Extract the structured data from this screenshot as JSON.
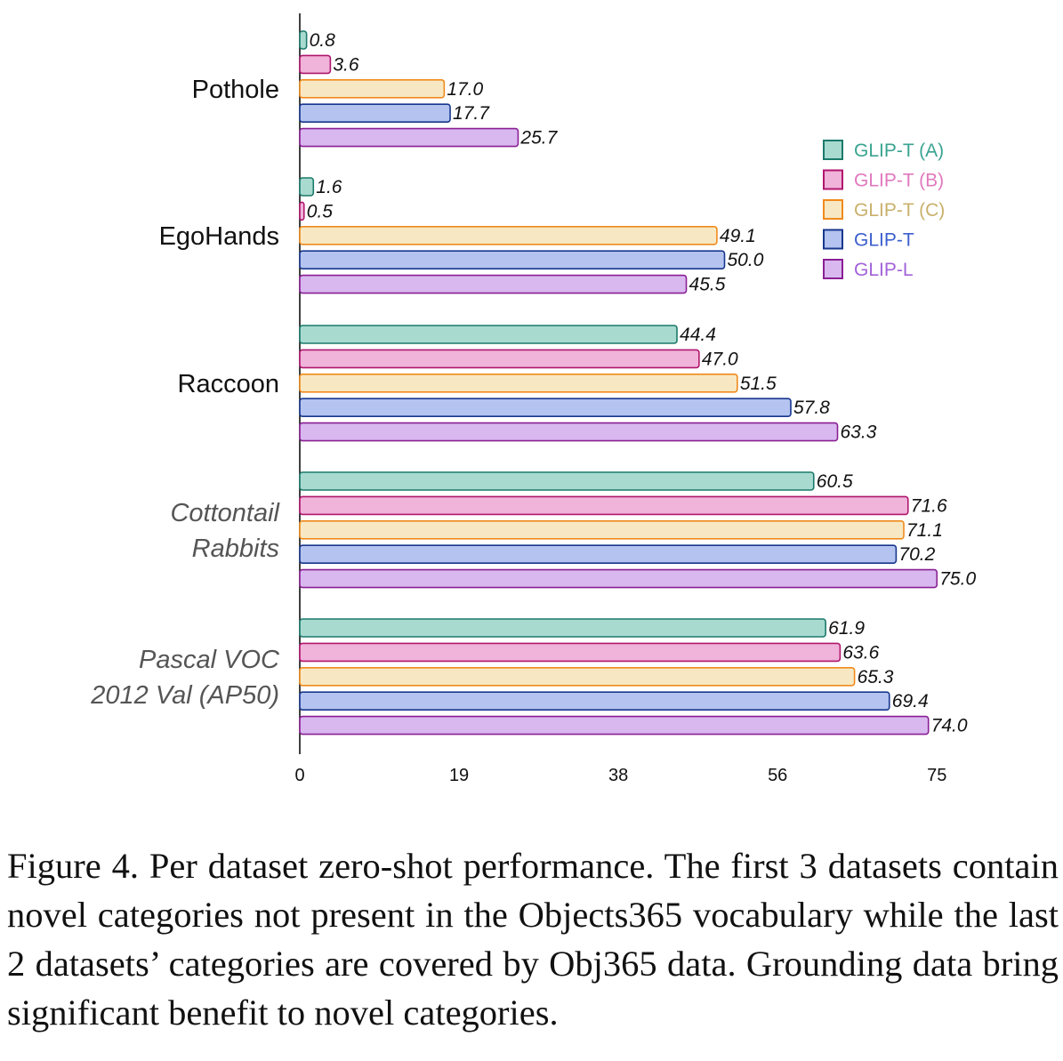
{
  "chart_data": {
    "type": "bar",
    "orientation": "horizontal",
    "categories": [
      {
        "lines": [
          "Pothole"
        ],
        "style": "normal"
      },
      {
        "lines": [
          "EgoHands"
        ],
        "style": "normal"
      },
      {
        "lines": [
          "Raccoon"
        ],
        "style": "normal"
      },
      {
        "lines": [
          "Cottontail",
          "Rabbits"
        ],
        "style": "italic"
      },
      {
        "lines": [
          "Pascal VOC",
          "2012 Val (AP50)"
        ],
        "style": "italic"
      }
    ],
    "series": [
      {
        "name": "GLIP-T (A)",
        "fill": "#a8dad0",
        "stroke": "#1b7a6a",
        "label_color": "#3aa391",
        "values": [
          0.8,
          1.6,
          44.4,
          60.5,
          61.9
        ]
      },
      {
        "name": "GLIP-T (B)",
        "fill": "#f0b3d9",
        "stroke": "#b0166e",
        "label_color": "#e079be",
        "values": [
          3.6,
          0.5,
          47.0,
          71.6,
          63.6
        ]
      },
      {
        "name": "GLIP-T (C)",
        "fill": "#f7e8c3",
        "stroke": "#f08a1c",
        "label_color": "#c9b06a",
        "values": [
          17.0,
          49.1,
          51.5,
          71.1,
          65.3
        ]
      },
      {
        "name": "GLIP-T",
        "fill": "#b4c3ef",
        "stroke": "#17378e",
        "label_color": "#3c5fce",
        "values": [
          17.7,
          50.0,
          57.8,
          70.2,
          69.4
        ]
      },
      {
        "name": "GLIP-L",
        "fill": "#d8b8ef",
        "stroke": "#8a1f94",
        "label_color": "#a262d9",
        "values": [
          25.7,
          45.5,
          63.3,
          75.0,
          74.0
        ]
      }
    ],
    "x_ticks": [
      "0",
      "19",
      "38",
      "56",
      "75"
    ],
    "xlim": [
      0,
      75
    ],
    "grid": false,
    "legend_position": "top-right",
    "value_labels_italic": true
  },
  "caption": "Figure 4. Per dataset zero-shot performance. The first 3 datasets contain novel categories not present in the Objects365 vocabulary while the last 2 datasets’ categories are covered by Obj365 data. Grounding data bring significant benefit to novel categories."
}
